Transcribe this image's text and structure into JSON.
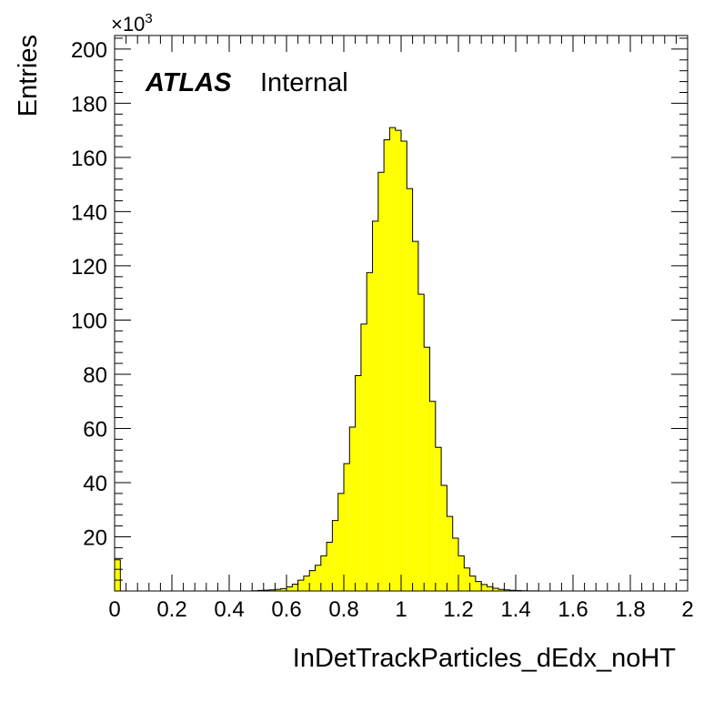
{
  "chart_data": {
    "type": "bar",
    "title": "",
    "xlabel": "InDetTrackParticles_dEdx_noHT",
    "ylabel": "Entries",
    "y_multiplier_label": "×10",
    "y_multiplier_exponent": "3",
    "annotation_bold": "ATLAS",
    "annotation_normal": "Internal",
    "xlim": [
      0,
      2
    ],
    "ylim": [
      0,
      205
    ],
    "bin_width": 0.02,
    "x_ticks": [
      "0",
      "0.2",
      "0.4",
      "0.6",
      "0.8",
      "1",
      "1.2",
      "1.4",
      "1.6",
      "1.8",
      "2"
    ],
    "y_ticks": [
      "20",
      "40",
      "60",
      "80",
      "100",
      "120",
      "140",
      "160",
      "180",
      "200"
    ],
    "fill_color": "#ffff00",
    "line_color": "#000000",
    "grid": false,
    "legend": "none",
    "values": [
      11.5,
      0,
      0,
      0,
      0,
      0,
      0,
      0,
      0,
      0,
      0,
      0,
      0,
      0,
      0,
      0,
      0,
      0,
      0,
      0,
      0,
      0,
      0,
      0,
      0.1,
      0.2,
      0.3,
      0.4,
      0.6,
      0.9,
      1.5,
      2.5,
      4.0,
      5.5,
      7.5,
      9.5,
      13.0,
      18.0,
      26.0,
      36.0,
      47.0,
      60.5,
      79.5,
      98.5,
      117.5,
      136.5,
      154.5,
      166.5,
      171.0,
      170.0,
      166.0,
      148.5,
      129.0,
      109.5,
      90.0,
      70.0,
      53.0,
      39.0,
      27.5,
      19.5,
      13.0,
      8.5,
      5.5,
      3.5,
      2.4,
      1.6,
      1.0,
      0.6,
      0.4,
      0.25,
      0.15,
      0.1,
      0.05,
      0.03,
      0,
      0,
      0,
      0,
      0,
      0,
      0,
      0,
      0,
      0,
      0,
      0,
      0,
      0,
      0,
      0,
      0,
      0,
      0,
      0,
      0,
      0,
      0,
      0,
      0,
      0
    ]
  }
}
